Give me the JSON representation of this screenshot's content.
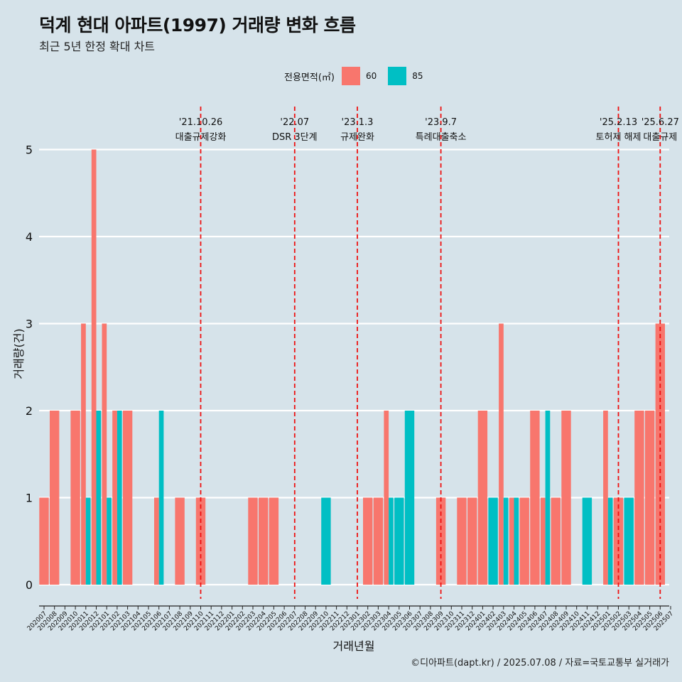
{
  "title": "덕계 현대 아파트(1997) 거래량 변화 흐름",
  "subtitle": "최근 5년 한정 확대 차트",
  "legend": {
    "title": "전용면적(㎡)",
    "items": [
      {
        "label": "60",
        "color": "#f8766d"
      },
      {
        "label": "85",
        "color": "#00bfc4"
      }
    ]
  },
  "caption": "©디아파트(dapt.kr) / 2025.07.08 / 자료=국토교통부 실거래가",
  "chart_data": {
    "type": "bar",
    "xlabel": "거래년월",
    "ylabel": "거래량(건)",
    "ylim": [
      0,
      5
    ],
    "yticks": [
      0,
      1,
      2,
      3,
      4,
      5
    ],
    "grid": true,
    "legend_position": "top",
    "categories": [
      "202007",
      "202008",
      "202009",
      "202010",
      "202011",
      "202012",
      "202101",
      "202102",
      "202103",
      "202104",
      "202105",
      "202106",
      "202107",
      "202108",
      "202109",
      "202110",
      "202111",
      "202112",
      "202201",
      "202202",
      "202203",
      "202204",
      "202205",
      "202206",
      "202207",
      "202208",
      "202209",
      "202210",
      "202211",
      "202212",
      "202301",
      "202302",
      "202303",
      "202304",
      "202305",
      "202306",
      "202307",
      "202308",
      "202309",
      "202310",
      "202311",
      "202312",
      "202401",
      "202402",
      "202403",
      "202404",
      "202405",
      "202406",
      "202407",
      "202408",
      "202409",
      "202410",
      "202411",
      "202412",
      "202501",
      "202502",
      "202503",
      "202504",
      "202505",
      "202506",
      "202507"
    ],
    "series": [
      {
        "name": "60",
        "color": "#f8766d",
        "values": [
          1,
          2,
          0,
          2,
          3,
          5,
          3,
          2,
          2,
          0,
          0,
          1,
          0,
          1,
          0,
          1,
          0,
          0,
          0,
          0,
          1,
          1,
          1,
          0,
          0,
          0,
          0,
          0,
          0,
          0,
          0,
          1,
          1,
          2,
          0,
          0,
          0,
          0,
          1,
          0,
          1,
          1,
          2,
          0,
          3,
          1,
          1,
          2,
          1,
          1,
          2,
          0,
          0,
          0,
          2,
          1,
          0,
          2,
          2,
          3,
          0
        ]
      },
      {
        "name": "85",
        "color": "#00bfc4",
        "values": [
          0,
          0,
          0,
          0,
          1,
          2,
          1,
          2,
          0,
          0,
          0,
          2,
          0,
          0,
          0,
          0,
          0,
          0,
          0,
          0,
          0,
          0,
          0,
          0,
          0,
          0,
          0,
          1,
          0,
          0,
          0,
          0,
          0,
          1,
          1,
          2,
          0,
          0,
          0,
          0,
          0,
          0,
          0,
          1,
          1,
          1,
          0,
          0,
          2,
          0,
          0,
          0,
          1,
          0,
          1,
          0,
          1,
          0,
          0,
          0,
          0
        ]
      }
    ],
    "annotations": [
      {
        "date": "'21.10.26",
        "label": "대출규제강화",
        "category": "202110"
      },
      {
        "date": "'22.07",
        "label": "DSR 3단계",
        "category": "202207"
      },
      {
        "date": "'23.1.3",
        "label": "규제완화",
        "category": "202301"
      },
      {
        "date": "'23.9.7",
        "label": "특례대출축소",
        "category": "202309"
      },
      {
        "date": "'25.2.13",
        "label": "토허제 해제",
        "category": "202502"
      },
      {
        "date": "'25.6.27",
        "label": "대출규제",
        "category": "202506"
      }
    ]
  }
}
